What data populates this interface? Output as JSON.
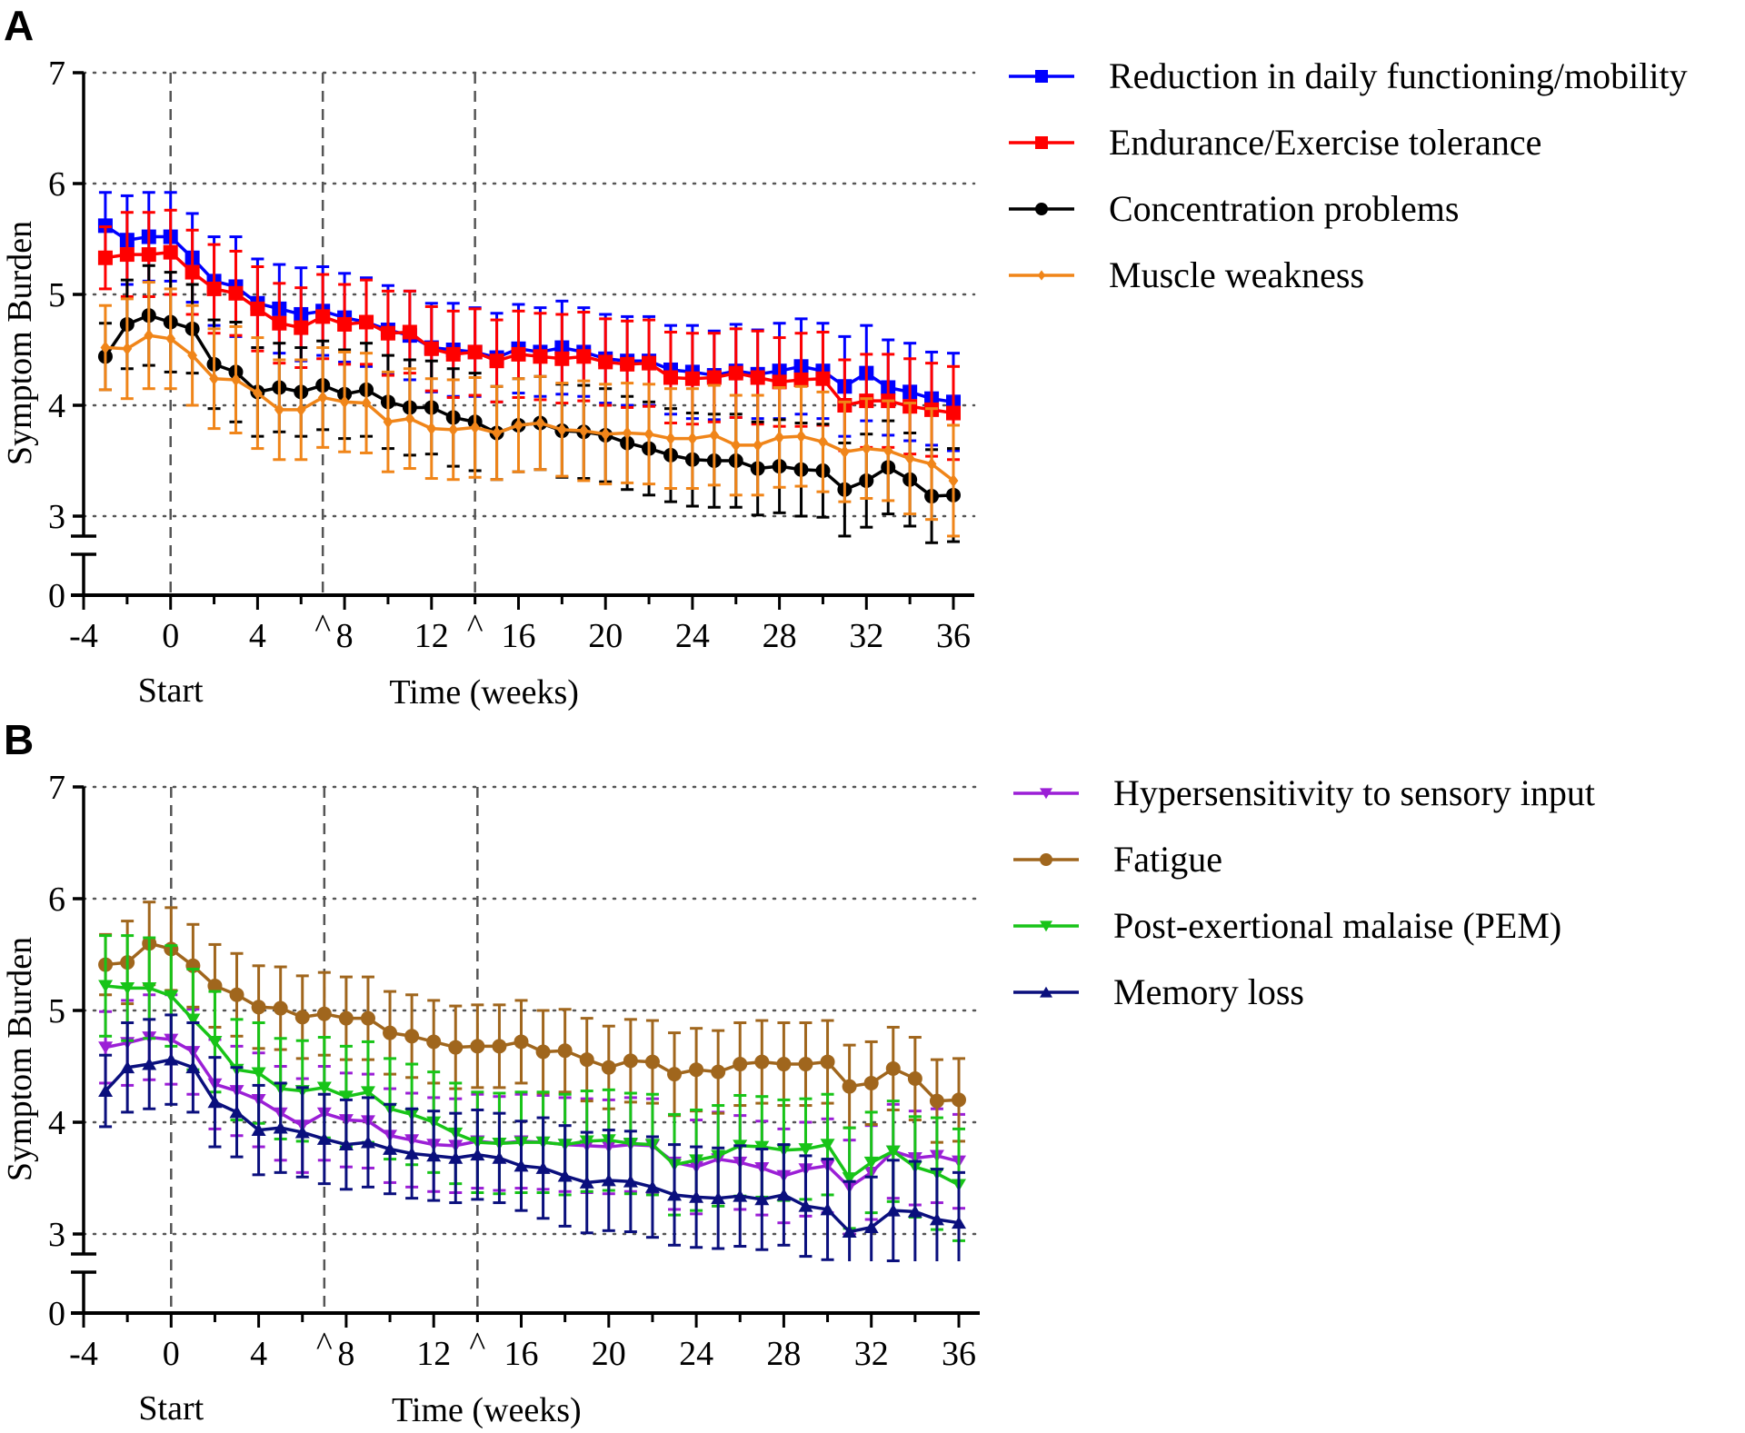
{
  "chart_data": [
    {
      "panel": "A",
      "type": "line",
      "title": "",
      "xlabel": "Time (weeks)",
      "ylabel": "Symptom Burden",
      "x_sublabel": "Start",
      "xticks": [
        "-4",
        "0",
        "4",
        "^8",
        "12",
        "^",
        "16",
        "20",
        "24",
        "28",
        "32",
        "36"
      ],
      "xtick_values": [
        -4,
        0,
        4,
        8,
        12,
        16,
        20,
        24,
        28,
        32,
        36
      ],
      "marker_caret_weeks": [
        7,
        14
      ],
      "yticks": [
        "0",
        "3",
        "4",
        "5",
        "6",
        "7"
      ],
      "ylim": [
        3,
        7
      ],
      "y_axis_break": true,
      "grid": "horizontal dotted at 3,4,5,6,7",
      "vertical_dashed_lines": [
        0,
        7,
        14
      ],
      "legend_position": "right",
      "x": [
        -3,
        -2,
        -1,
        0,
        1,
        2,
        3,
        4,
        5,
        6,
        7,
        8,
        9,
        10,
        11,
        12,
        13,
        14,
        15,
        16,
        17,
        18,
        19,
        20,
        21,
        22,
        23,
        24,
        25,
        26,
        27,
        28,
        29,
        30,
        31,
        32,
        33,
        34,
        35,
        36
      ],
      "series": [
        {
          "name": "Reduction in daily functioning/mobility",
          "color": "#0000ff",
          "marker": "square",
          "values": [
            5.62,
            5.49,
            5.52,
            5.52,
            5.33,
            5.12,
            5.07,
            4.92,
            4.87,
            4.82,
            4.85,
            4.79,
            4.75,
            4.68,
            4.63,
            4.52,
            4.5,
            4.48,
            4.43,
            4.51,
            4.48,
            4.52,
            4.48,
            4.42,
            4.4,
            4.4,
            4.32,
            4.3,
            4.27,
            4.31,
            4.28,
            4.31,
            4.35,
            4.31,
            4.17,
            4.29,
            4.16,
            4.12,
            4.06,
            4.03
          ],
          "errors": [
            0.3,
            0.4,
            0.4,
            0.4,
            0.4,
            0.4,
            0.45,
            0.4,
            0.4,
            0.42,
            0.4,
            0.4,
            0.4,
            0.4,
            0.4,
            0.4,
            0.42,
            0.4,
            0.4,
            0.4,
            0.4,
            0.42,
            0.4,
            0.4,
            0.4,
            0.4,
            0.4,
            0.42,
            0.4,
            0.42,
            0.4,
            0.43,
            0.43,
            0.43,
            0.45,
            0.43,
            0.43,
            0.44,
            0.42,
            0.44
          ]
        },
        {
          "name": "Endurance/Exercise tolerance",
          "color": "#ff0000",
          "marker": "square",
          "values": [
            5.33,
            5.36,
            5.36,
            5.38,
            5.2,
            5.05,
            5.01,
            4.87,
            4.74,
            4.7,
            4.8,
            4.73,
            4.75,
            4.65,
            4.66,
            4.51,
            4.46,
            4.48,
            4.4,
            4.46,
            4.44,
            4.42,
            4.44,
            4.39,
            4.37,
            4.38,
            4.25,
            4.24,
            4.25,
            4.29,
            4.25,
            4.21,
            4.23,
            4.24,
            4.0,
            4.04,
            4.04,
            3.99,
            3.96,
            3.93
          ],
          "errors": [
            0.28,
            0.38,
            0.38,
            0.38,
            0.38,
            0.4,
            0.38,
            0.38,
            0.36,
            0.36,
            0.38,
            0.36,
            0.38,
            0.38,
            0.37,
            0.38,
            0.39,
            0.39,
            0.37,
            0.39,
            0.39,
            0.4,
            0.4,
            0.39,
            0.39,
            0.39,
            0.41,
            0.41,
            0.4,
            0.4,
            0.42,
            0.4,
            0.42,
            0.42,
            0.41,
            0.42,
            0.42,
            0.43,
            0.42,
            0.42
          ]
        },
        {
          "name": "Concentration problems",
          "color": "#000000",
          "marker": "circle",
          "values": [
            4.44,
            4.73,
            4.81,
            4.75,
            4.69,
            4.37,
            4.3,
            4.12,
            4.16,
            4.12,
            4.18,
            4.1,
            4.14,
            4.03,
            3.98,
            3.98,
            3.89,
            3.85,
            3.75,
            3.82,
            3.84,
            3.77,
            3.76,
            3.73,
            3.66,
            3.61,
            3.55,
            3.51,
            3.5,
            3.5,
            3.43,
            3.45,
            3.42,
            3.41,
            3.24,
            3.32,
            3.44,
            3.33,
            3.18,
            3.19
          ],
          "errors": [
            0.3,
            0.4,
            0.45,
            0.45,
            0.4,
            0.4,
            0.45,
            0.4,
            0.4,
            0.4,
            0.4,
            0.4,
            0.42,
            0.42,
            0.43,
            0.42,
            0.44,
            0.44,
            0.42,
            0.42,
            0.42,
            0.42,
            0.42,
            0.42,
            0.42,
            0.42,
            0.42,
            0.42,
            0.42,
            0.42,
            0.42,
            0.42,
            0.42,
            0.42,
            0.42,
            0.42,
            0.42,
            0.42,
            0.42,
            0.42
          ]
        },
        {
          "name": "Muscle weakness",
          "color": "#f08519",
          "marker": "diamond",
          "values": [
            4.52,
            4.51,
            4.63,
            4.6,
            4.45,
            4.24,
            4.23,
            4.11,
            3.96,
            3.96,
            4.07,
            4.03,
            4.02,
            3.85,
            3.88,
            3.79,
            3.78,
            3.8,
            3.75,
            3.82,
            3.84,
            3.78,
            3.77,
            3.74,
            3.75,
            3.74,
            3.7,
            3.7,
            3.73,
            3.64,
            3.64,
            3.71,
            3.72,
            3.67,
            3.58,
            3.61,
            3.59,
            3.52,
            3.47,
            3.32
          ],
          "errors": [
            0.38,
            0.45,
            0.48,
            0.45,
            0.45,
            0.45,
            0.48,
            0.5,
            0.45,
            0.45,
            0.45,
            0.45,
            0.45,
            0.45,
            0.45,
            0.45,
            0.45,
            0.45,
            0.42,
            0.42,
            0.42,
            0.42,
            0.45,
            0.45,
            0.45,
            0.45,
            0.45,
            0.45,
            0.45,
            0.45,
            0.45,
            0.45,
            0.45,
            0.45,
            0.45,
            0.45,
            0.45,
            0.5,
            0.5,
            0.5
          ]
        }
      ]
    },
    {
      "panel": "B",
      "type": "line",
      "title": "",
      "xlabel": "Time (weeks)",
      "ylabel": "Symptom Burden",
      "x_sublabel": "Start",
      "xticks": [
        "-4",
        "0",
        "4",
        "^8",
        "12",
        "^",
        "16",
        "20",
        "24",
        "28",
        "32",
        "36"
      ],
      "xtick_values": [
        -4,
        0,
        4,
        8,
        12,
        16,
        20,
        24,
        28,
        32,
        36
      ],
      "marker_caret_weeks": [
        7,
        14
      ],
      "yticks": [
        "0",
        "3",
        "4",
        "5",
        "6",
        "7"
      ],
      "ylim": [
        3,
        7
      ],
      "y_axis_break": true,
      "grid": "horizontal dotted at 3,4,5,6,7",
      "vertical_dashed_lines": [
        0,
        7,
        14
      ],
      "legend_position": "right",
      "x": [
        -3,
        -2,
        -1,
        0,
        1,
        2,
        3,
        4,
        5,
        6,
        7,
        8,
        9,
        10,
        11,
        12,
        13,
        14,
        15,
        16,
        17,
        18,
        19,
        20,
        21,
        22,
        23,
        24,
        25,
        26,
        27,
        28,
        29,
        30,
        31,
        32,
        33,
        34,
        35,
        36
      ],
      "series": [
        {
          "name": "Hypersensitivity to sensory input",
          "color": "#9b1fd6",
          "marker": "triangle-down",
          "values": [
            4.67,
            4.71,
            4.76,
            4.74,
            4.63,
            4.34,
            4.28,
            4.2,
            4.08,
            3.97,
            4.08,
            4.02,
            4.01,
            3.88,
            3.84,
            3.8,
            3.79,
            3.83,
            3.81,
            3.83,
            3.82,
            3.8,
            3.79,
            3.78,
            3.8,
            3.79,
            3.64,
            3.6,
            3.67,
            3.64,
            3.59,
            3.52,
            3.58,
            3.61,
            3.42,
            3.55,
            3.74,
            3.68,
            3.7,
            3.65
          ],
          "errors": [
            0.32,
            0.38,
            0.38,
            0.4,
            0.38,
            0.4,
            0.4,
            0.42,
            0.42,
            0.42,
            0.42,
            0.42,
            0.42,
            0.42,
            0.42,
            0.42,
            0.42,
            0.42,
            0.42,
            0.42,
            0.42,
            0.42,
            0.42,
            0.42,
            0.42,
            0.42,
            0.42,
            0.42,
            0.42,
            0.42,
            0.42,
            0.42,
            0.42,
            0.42,
            0.42,
            0.42,
            0.42,
            0.42,
            0.42,
            0.42
          ]
        },
        {
          "name": "Fatigue",
          "color": "#a0661d",
          "marker": "circle",
          "values": [
            5.41,
            5.43,
            5.6,
            5.55,
            5.4,
            5.22,
            5.14,
            5.03,
            5.02,
            4.94,
            4.97,
            4.93,
            4.93,
            4.8,
            4.77,
            4.72,
            4.67,
            4.68,
            4.68,
            4.72,
            4.63,
            4.64,
            4.56,
            4.49,
            4.55,
            4.54,
            4.43,
            4.47,
            4.45,
            4.52,
            4.54,
            4.52,
            4.52,
            4.54,
            4.32,
            4.35,
            4.48,
            4.39,
            4.19,
            4.2
          ],
          "errors": [
            0.27,
            0.37,
            0.37,
            0.37,
            0.37,
            0.37,
            0.37,
            0.37,
            0.37,
            0.37,
            0.37,
            0.37,
            0.37,
            0.37,
            0.37,
            0.37,
            0.37,
            0.37,
            0.37,
            0.37,
            0.37,
            0.37,
            0.37,
            0.37,
            0.37,
            0.37,
            0.37,
            0.37,
            0.37,
            0.37,
            0.37,
            0.37,
            0.37,
            0.37,
            0.37,
            0.37,
            0.37,
            0.37,
            0.37,
            0.37
          ]
        },
        {
          "name": "Post-exertional malaise (PEM)",
          "color": "#18c418",
          "marker": "triangle-down",
          "values": [
            5.22,
            5.2,
            5.2,
            5.13,
            4.92,
            4.72,
            4.47,
            4.44,
            4.3,
            4.28,
            4.31,
            4.23,
            4.27,
            4.12,
            4.07,
            4.0,
            3.9,
            3.82,
            3.81,
            3.82,
            3.82,
            3.8,
            3.83,
            3.84,
            3.81,
            3.8,
            3.62,
            3.66,
            3.7,
            3.79,
            3.78,
            3.75,
            3.76,
            3.8,
            3.5,
            3.64,
            3.74,
            3.6,
            3.54,
            3.44
          ],
          "errors": [
            0.45,
            0.47,
            0.45,
            0.45,
            0.45,
            0.45,
            0.45,
            0.45,
            0.45,
            0.45,
            0.45,
            0.45,
            0.45,
            0.45,
            0.45,
            0.45,
            0.45,
            0.45,
            0.45,
            0.45,
            0.45,
            0.45,
            0.45,
            0.45,
            0.45,
            0.45,
            0.45,
            0.45,
            0.45,
            0.45,
            0.45,
            0.45,
            0.45,
            0.45,
            0.45,
            0.45,
            0.45,
            0.45,
            0.5,
            0.5
          ]
        },
        {
          "name": "Memory loss",
          "color": "#0a0f7d",
          "marker": "triangle-up",
          "values": [
            4.28,
            4.49,
            4.52,
            4.56,
            4.49,
            4.18,
            4.09,
            3.93,
            3.95,
            3.91,
            3.85,
            3.8,
            3.82,
            3.76,
            3.72,
            3.7,
            3.68,
            3.71,
            3.68,
            3.61,
            3.59,
            3.52,
            3.46,
            3.48,
            3.47,
            3.42,
            3.35,
            3.33,
            3.32,
            3.34,
            3.31,
            3.35,
            3.25,
            3.22,
            3.02,
            3.06,
            3.21,
            3.2,
            3.13,
            3.1
          ],
          "errors": [
            0.32,
            0.4,
            0.4,
            0.4,
            0.4,
            0.4,
            0.4,
            0.4,
            0.4,
            0.4,
            0.4,
            0.4,
            0.4,
            0.4,
            0.4,
            0.4,
            0.4,
            0.4,
            0.4,
            0.4,
            0.45,
            0.45,
            0.45,
            0.45,
            0.45,
            0.45,
            0.45,
            0.45,
            0.45,
            0.45,
            0.45,
            0.45,
            0.45,
            0.45,
            0.45,
            0.45,
            0.45,
            0.45,
            0.45,
            0.45
          ]
        }
      ]
    }
  ]
}
